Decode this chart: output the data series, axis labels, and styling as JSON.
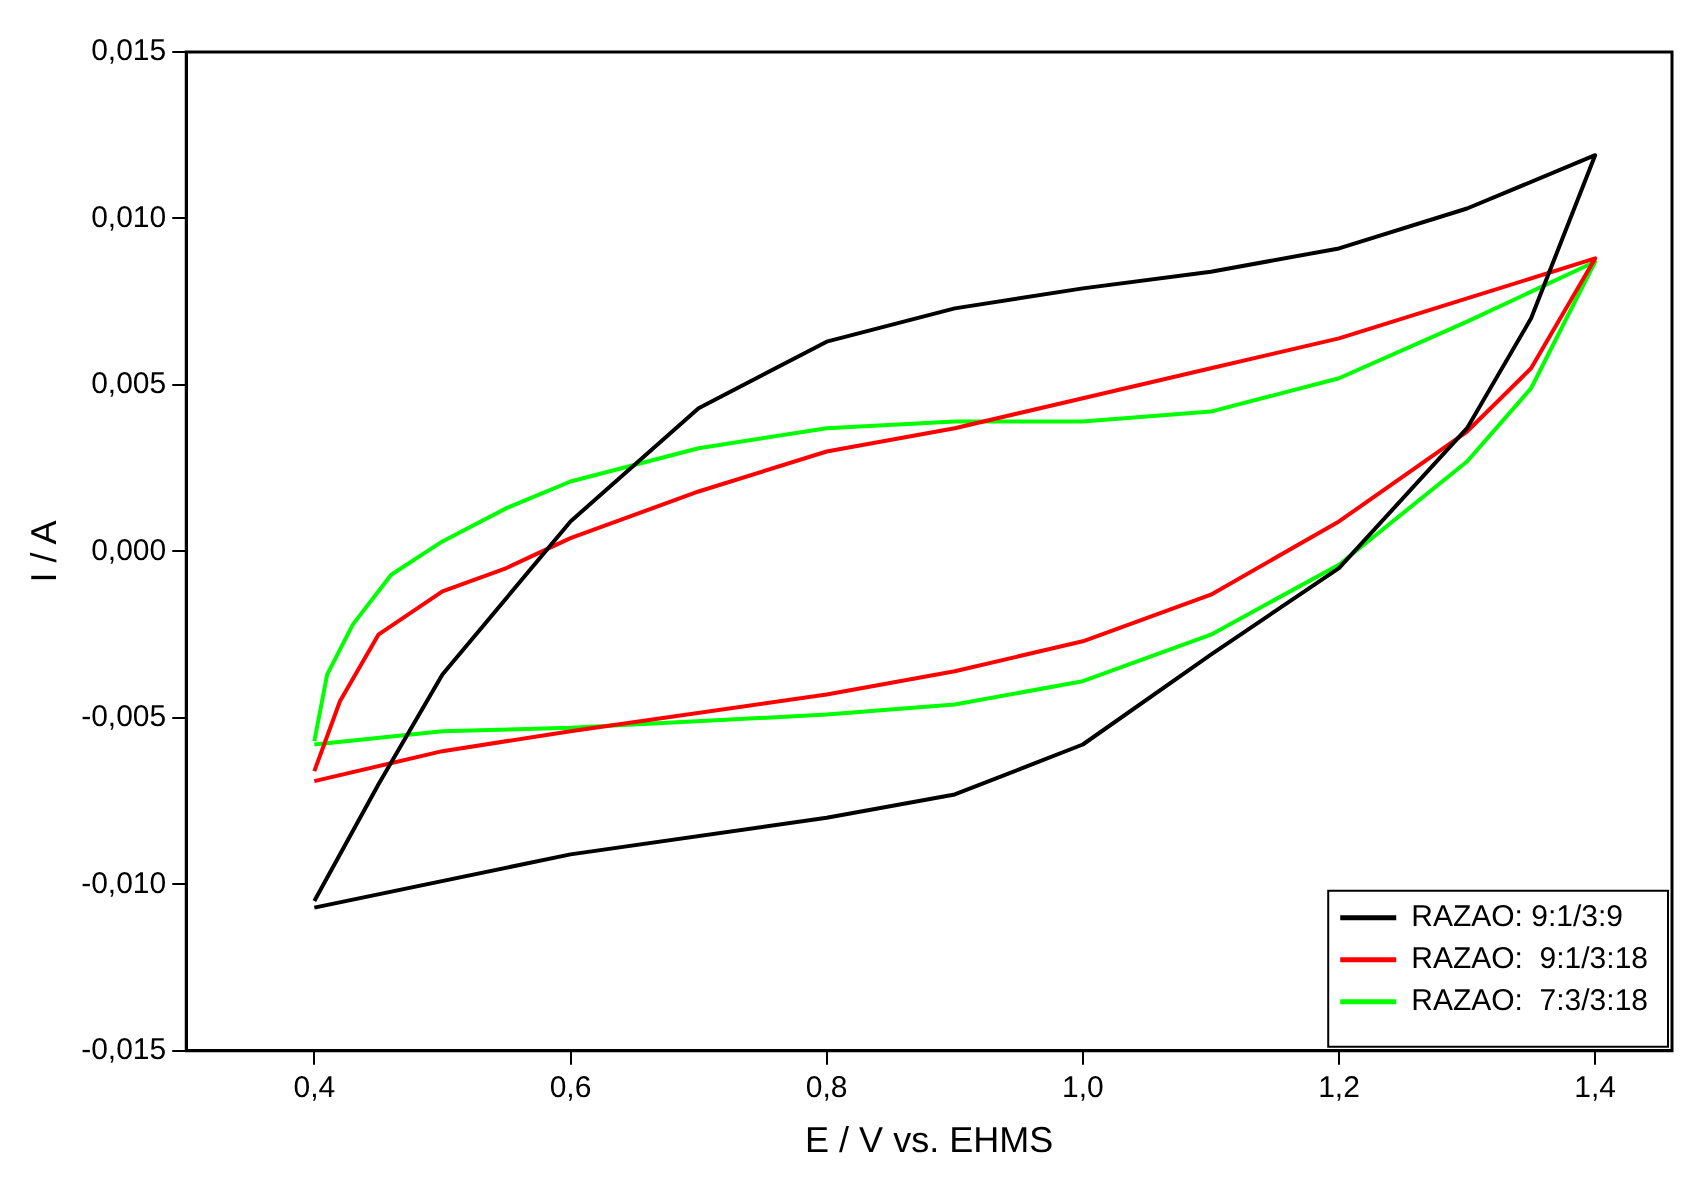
{
  "chart_data": {
    "type": "line",
    "xlabel": "E / V vs. EHMS",
    "ylabel": "I / A",
    "xlim": [
      0.3,
      1.46
    ],
    "ylim": [
      -0.015,
      0.015
    ],
    "xticks": [
      {
        "value": 0.4,
        "label": "0,4"
      },
      {
        "value": 0.6,
        "label": "0,6"
      },
      {
        "value": 0.8,
        "label": "0,8"
      },
      {
        "value": 1.0,
        "label": "1,0"
      },
      {
        "value": 1.2,
        "label": "1,2"
      },
      {
        "value": 1.4,
        "label": "1,4"
      }
    ],
    "yticks": [
      {
        "value": -0.015,
        "label": "-0,015"
      },
      {
        "value": -0.01,
        "label": "-0,010"
      },
      {
        "value": -0.005,
        "label": "-0,005"
      },
      {
        "value": 0,
        "label": "0,000"
      },
      {
        "value": 0.005,
        "label": "0,005"
      },
      {
        "value": 0.01,
        "label": "0,010"
      },
      {
        "value": 0.015,
        "label": "0,015"
      }
    ],
    "grid": false,
    "legend": "bottom right",
    "marker": "none",
    "line_style": "solid",
    "series": [
      {
        "name": "RAZAO: 9:1/3:9",
        "color": "#000000",
        "x": [
          0.4,
          0.45,
          0.5,
          0.6,
          0.7,
          0.8,
          0.9,
          1.0,
          1.1,
          1.2,
          1.3,
          1.4,
          1.35,
          1.3,
          1.2,
          1.1,
          1.0,
          0.9,
          0.8,
          0.6,
          0.4
        ],
        "values": [
          -0.0105,
          -0.007,
          -0.0037,
          0.0009,
          0.0043,
          0.0063,
          0.0073,
          0.0079,
          0.0084,
          0.0091,
          0.0103,
          0.0119,
          0.007,
          0.0037,
          -0.0005,
          -0.0031,
          -0.0058,
          -0.0073,
          -0.008,
          -0.0091,
          -0.0107
        ]
      },
      {
        "name": "RAZAO:  9:1/3:18",
        "color": "#ff0000",
        "x": [
          0.4,
          0.42,
          0.45,
          0.5,
          0.55,
          0.6,
          0.7,
          0.8,
          0.9,
          1.0,
          1.1,
          1.2,
          1.3,
          1.4,
          1.35,
          1.3,
          1.2,
          1.1,
          1.0,
          0.9,
          0.8,
          0.6,
          0.5,
          0.4
        ],
        "values": [
          -0.0066,
          -0.0045,
          -0.0025,
          -0.0012,
          -0.0005,
          0.0004,
          0.0018,
          0.003,
          0.0037,
          0.0046,
          0.0055,
          0.0064,
          0.0076,
          0.0088,
          0.0055,
          0.0036,
          0.0009,
          -0.0013,
          -0.0027,
          -0.0036,
          -0.0043,
          -0.0054,
          -0.006,
          -0.0069
        ]
      },
      {
        "name": "RAZAO:  7:3/3:18",
        "color": "#00ff00",
        "x": [
          0.4,
          0.41,
          0.43,
          0.46,
          0.5,
          0.55,
          0.6,
          0.7,
          0.8,
          0.9,
          1.0,
          1.1,
          1.2,
          1.3,
          1.4,
          1.35,
          1.3,
          1.2,
          1.1,
          1.0,
          0.9,
          0.8,
          0.6,
          0.5,
          0.4
        ],
        "values": [
          -0.0057,
          -0.0037,
          -0.0022,
          -0.0007,
          0.0003,
          0.0013,
          0.0021,
          0.0031,
          0.0037,
          0.0039,
          0.0039,
          0.0042,
          0.0052,
          0.0069,
          0.0087,
          0.0049,
          0.0027,
          -0.0004,
          -0.0025,
          -0.0039,
          -0.0046,
          -0.0049,
          -0.0053,
          -0.0054,
          -0.0058
        ]
      }
    ]
  }
}
